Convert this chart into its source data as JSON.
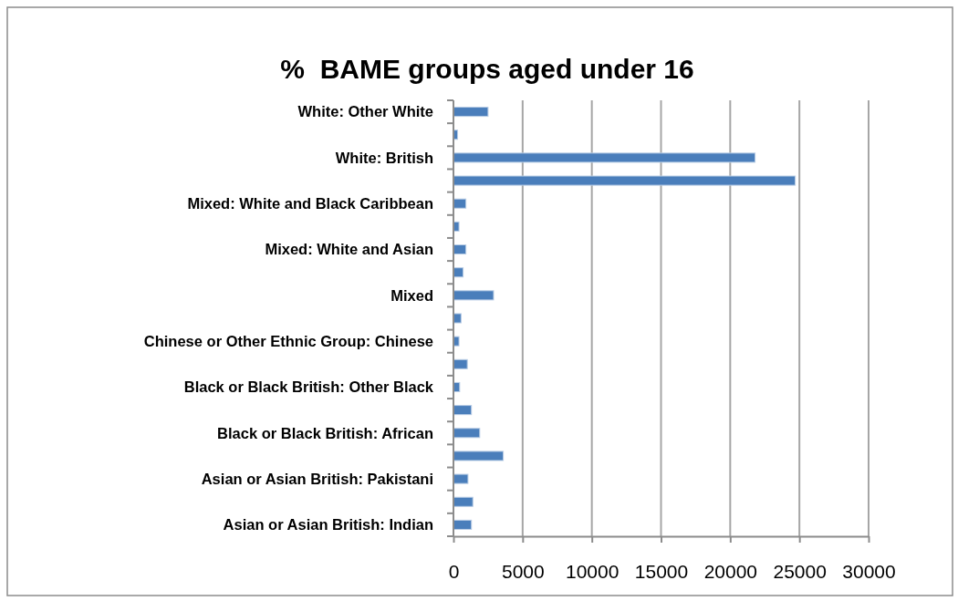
{
  "chart_data": {
    "type": "bar",
    "orientation": "horizontal",
    "title": "%  BAME groups aged under 16",
    "categories": [
      "White: Other White",
      null,
      "White: British",
      null,
      "Mixed: White and Black Caribbean",
      null,
      "Mixed: White and Asian",
      null,
      "Mixed",
      null,
      "Chinese or Other Ethnic Group: Chinese",
      null,
      "Black or Black British: Other Black",
      null,
      "Black or Black British: African",
      null,
      "Asian or Asian British: Pakistani",
      null,
      "Asian or Asian British: Indian"
    ],
    "values": [
      2500,
      300,
      21800,
      24700,
      900,
      400,
      900,
      700,
      2900,
      550,
      400,
      1000,
      450,
      1300,
      1900,
      3600,
      1050,
      1400,
      1300
    ],
    "color": "#4a7ebb",
    "xlim": [
      0,
      30000
    ],
    "xticks": [
      0,
      5000,
      10000,
      15000,
      20000,
      25000,
      30000
    ],
    "grid": "x"
  }
}
